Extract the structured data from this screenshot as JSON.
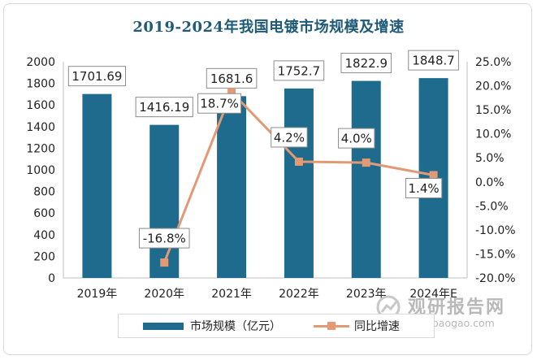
{
  "chart_data": {
    "type": "bar",
    "title": "2019-2024年我国电镀市场规模及增速",
    "categories": [
      "2019年",
      "2020年",
      "2021年",
      "2022年",
      "2023年",
      "2024年E"
    ],
    "series": [
      {
        "name": "市场规模（亿元）",
        "type": "bar",
        "axis": "left",
        "values": [
          1701.69,
          1416.19,
          1681.6,
          1752.7,
          1822.9,
          1848.7
        ],
        "labels": [
          "1701.69",
          "1416.19",
          "1681.6",
          "1752.7",
          "1822.9",
          "1848.7"
        ]
      },
      {
        "name": "同比增速",
        "type": "line",
        "axis": "right",
        "values": [
          null,
          -16.8,
          18.7,
          4.2,
          4.0,
          1.4
        ],
        "labels": [
          "",
          "-16.8%",
          "18.7%",
          "4.2%",
          "4.0%",
          "1.4%"
        ]
      }
    ],
    "y_left": {
      "range": [
        0,
        2000
      ],
      "ticks": [
        0,
        200,
        400,
        600,
        800,
        1000,
        1200,
        1400,
        1600,
        1800,
        2000
      ],
      "tick_labels": [
        "0",
        "200",
        "400",
        "600",
        "800",
        "1000",
        "1200",
        "1400",
        "1600",
        "1800",
        "2000"
      ]
    },
    "y_right": {
      "range": [
        -20,
        25
      ],
      "ticks": [
        -20,
        -15,
        -10,
        -5,
        0,
        5,
        10,
        15,
        20,
        25
      ],
      "tick_labels": [
        "-20.0%",
        "-15.0%",
        "-10.0%",
        "-5.0%",
        "0.0%",
        "5.0%",
        "10.0%",
        "15.0%",
        "20.0%",
        "25.0%"
      ]
    },
    "legend_position": "bottom",
    "grid": false,
    "colors": {
      "bar": "#1f6b8e",
      "line": "#e39a74",
      "title": "#1f5a77"
    }
  },
  "watermark": {
    "name_cn": "观研报告网",
    "url": "chinabaogao.com"
  }
}
